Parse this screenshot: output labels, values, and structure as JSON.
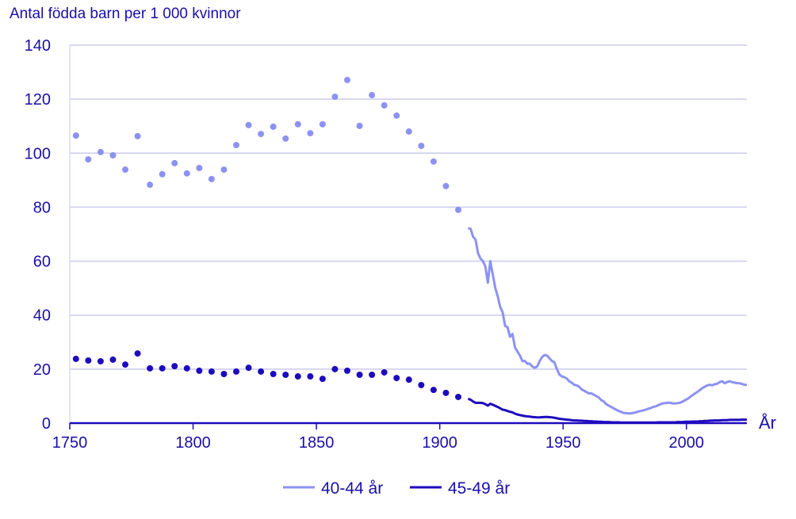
{
  "chart_data": {
    "type": "line",
    "title": "Antal födda barn per 1 000 kvinnor",
    "xlabel": "År",
    "ylabel": "",
    "xlim": [
      1750,
      2024
    ],
    "ylim": [
      0,
      140
    ],
    "x_ticks": [
      1750,
      1800,
      1850,
      1900,
      1950,
      2000
    ],
    "y_ticks": [
      0,
      20,
      40,
      60,
      80,
      100,
      120,
      140
    ],
    "grid": "horizontal",
    "legend": "bottom",
    "colors": {
      "light": "#8c92f2",
      "dark": "#1e0abe",
      "grid": "#cbcbef",
      "axis": "#1e0abe"
    },
    "series": [
      {
        "name": "40-44 år",
        "color": "#8c92f2",
        "dots_x": [
          1752.5,
          1757.5,
          1762.5,
          1767.5,
          1772.5,
          1777.5,
          1782.5,
          1787.5,
          1792.5,
          1797.5,
          1802.5,
          1807.5,
          1812.5,
          1817.5,
          1822.5,
          1827.5,
          1832.5,
          1837.5,
          1842.5,
          1847.5,
          1852.5,
          1857.5,
          1862.5,
          1867.5,
          1872.5,
          1877.5,
          1882.5,
          1887.5,
          1892.5,
          1897.5,
          1902.5,
          1907.5
        ],
        "dots_y": [
          106.5,
          97.7,
          100.4,
          99.2,
          93.9,
          106.3,
          88.3,
          92.2,
          96.3,
          92.5,
          94.5,
          90.4,
          93.9,
          103.0,
          110.4,
          107.1,
          109.8,
          105.4,
          110.7,
          107.4,
          110.7,
          120.9,
          127.1,
          110.1,
          121.5,
          117.7,
          113.9,
          108.0,
          102.7,
          96.9,
          87.8,
          79.0
        ],
        "line_start": 1911,
        "line_y": [
          72.2,
          72,
          69,
          68,
          63,
          61,
          60,
          58,
          52,
          60,
          55,
          50,
          47,
          43,
          41,
          36,
          35.5,
          32,
          33,
          28,
          26.5,
          25,
          23,
          23,
          22,
          22,
          21,
          20.5,
          21,
          23,
          24.5,
          25.2,
          25,
          24,
          23,
          22.5,
          20,
          18,
          17.3,
          17,
          16.5,
          15.5,
          15,
          14.2,
          14,
          13.5,
          12.5,
          12,
          11.5,
          11,
          11,
          10.5,
          10,
          9.5,
          8.5,
          8,
          7,
          6.5,
          6,
          5.5,
          5,
          4.5,
          4.2,
          3.8,
          3.7,
          3.6,
          3.6,
          3.8,
          4,
          4.3,
          4.5,
          4.7,
          5,
          5.3,
          5.6,
          6,
          6.2,
          6.6,
          7,
          7.3,
          7.4,
          7.6,
          7.5,
          7.3,
          7.3,
          7.4,
          7.6,
          8,
          8.5,
          9,
          9.7,
          10.4,
          11,
          11.6,
          12.3,
          13,
          13.5,
          14,
          14.2,
          14,
          14.4,
          14.6,
          15.2,
          15.5,
          14.8,
          15.2,
          15.5,
          15.2,
          15,
          14.8,
          14.8,
          14.5,
          14.2,
          14.2
        ]
      },
      {
        "name": "45-49 år",
        "color": "#1e0abe",
        "dots_x": [
          1752.5,
          1757.5,
          1762.5,
          1767.5,
          1772.5,
          1777.5,
          1782.5,
          1787.5,
          1792.5,
          1797.5,
          1802.5,
          1807.5,
          1812.5,
          1817.5,
          1822.5,
          1827.5,
          1832.5,
          1837.5,
          1842.5,
          1847.5,
          1852.5,
          1857.5,
          1862.5,
          1867.5,
          1872.5,
          1877.5,
          1882.5,
          1887.5,
          1892.5,
          1897.5,
          1902.5,
          1907.5
        ],
        "dots_y": [
          23.8,
          23.2,
          22.9,
          23.5,
          21.7,
          25.8,
          20.3,
          20.3,
          21.1,
          20.3,
          19.4,
          19.1,
          18.2,
          19.1,
          20.5,
          19.1,
          18.2,
          17.9,
          17.3,
          17.3,
          16.4,
          20.0,
          19.4,
          17.9,
          17.9,
          18.8,
          16.7,
          16.1,
          14.1,
          12.3,
          11.2,
          9.7
        ],
        "line_start": 1911,
        "line_y": [
          9,
          8.7,
          8,
          7.5,
          7.5,
          7.5,
          7.4,
          7,
          6.5,
          7.2,
          6.8,
          6.4,
          6,
          5.5,
          5,
          4.8,
          4.5,
          4.2,
          4,
          3.5,
          3.2,
          3,
          2.8,
          2.6,
          2.5,
          2.4,
          2.3,
          2.2,
          2.1,
          2.1,
          2.2,
          2.3,
          2.3,
          2.2,
          2.1,
          2,
          1.8,
          1.6,
          1.5,
          1.4,
          1.3,
          1.2,
          1.1,
          1.0,
          1.0,
          0.9,
          0.9,
          0.8,
          0.8,
          0.7,
          0.7,
          0.6,
          0.6,
          0.5,
          0.5,
          0.4,
          0.4,
          0.4,
          0.3,
          0.3,
          0.3,
          0.3,
          0.2,
          0.2,
          0.2,
          0.2,
          0.2,
          0.2,
          0.2,
          0.2,
          0.2,
          0.2,
          0.2,
          0.2,
          0.2,
          0.2,
          0.2,
          0.3,
          0.3,
          0.3,
          0.3,
          0.3,
          0.3,
          0.3,
          0.3,
          0.4,
          0.4,
          0.4,
          0.5,
          0.5,
          0.5,
          0.6,
          0.6,
          0.6,
          0.7,
          0.7,
          0.8,
          0.8,
          0.9,
          0.9,
          1.0,
          1.0,
          1.0,
          1.1,
          1.1,
          1.1,
          1.2,
          1.2,
          1.2,
          1.2,
          1.2,
          1.3,
          1.3,
          1.3
        ]
      }
    ]
  }
}
